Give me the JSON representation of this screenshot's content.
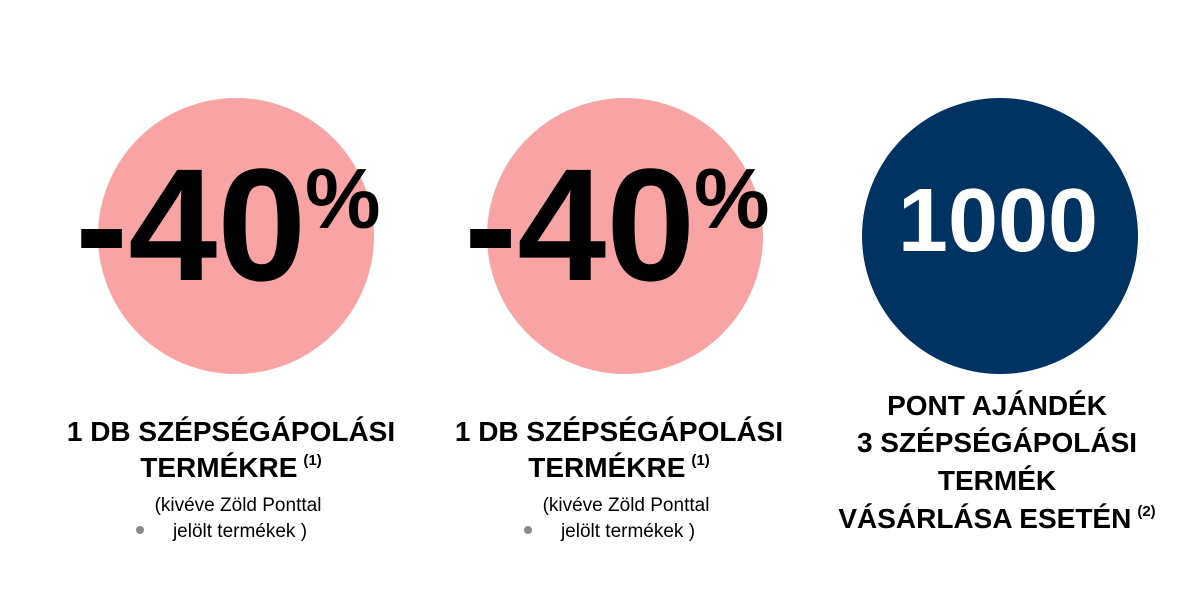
{
  "offers": [
    {
      "amount": "-40",
      "unit": "%",
      "title": [
        "1 DB SZÉPSÉGÁPOLÁSI",
        "TERMÉKRE"
      ],
      "footnote": "(1)",
      "note": [
        "(kivéve Zöld Ponttal",
        "jelölt termékek )"
      ]
    },
    {
      "amount": "-40",
      "unit": "%",
      "title": [
        "1 DB SZÉPSÉGÁPOLÁSI",
        "TERMÉKRE"
      ],
      "footnote": "(1)",
      "note": [
        "(kivéve Zöld Ponttal",
        "jelölt termékek )"
      ]
    },
    {
      "amount": "1000",
      "title": [
        "PONT AJÁNDÉK",
        "3 SZÉPSÉGÁPOLÁSI",
        "TERMÉK",
        "VÁSÁRLÁSA ESETÉN"
      ],
      "footnote": "(2)"
    }
  ]
}
